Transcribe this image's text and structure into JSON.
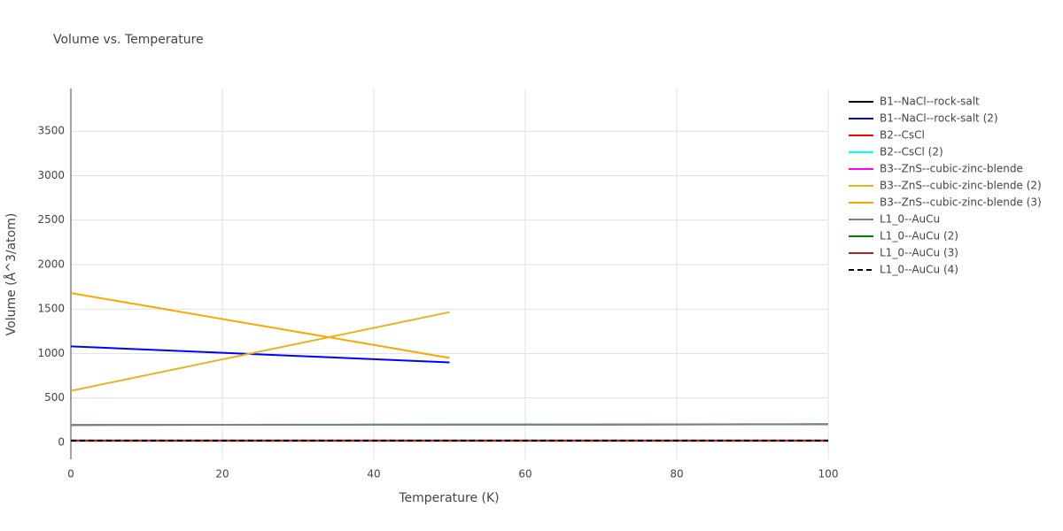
{
  "chart_data": {
    "type": "line",
    "title": "Volume vs. Temperature",
    "x_label": "Temperature (K)",
    "y_label": "Volume (Å^3/atom)",
    "x": [
      0,
      10,
      20,
      30,
      40,
      50,
      60,
      70,
      80,
      90,
      100
    ],
    "xlim": [
      0,
      100
    ],
    "xticks": [
      0,
      20,
      40,
      60,
      80,
      100
    ],
    "ylim": [
      -190,
      3980
    ],
    "yticks": [
      0,
      500,
      1000,
      1500,
      2000,
      2500,
      3000,
      3500
    ],
    "grid": true,
    "legend": "right",
    "series": [
      {
        "name": "B1--NaCl--rock-salt",
        "color": "#000000",
        "values": [
          196,
          197,
          198,
          198,
          199,
          200,
          201,
          201,
          202,
          203,
          204
        ]
      },
      {
        "name": "B1--NaCl--rock-salt (2)",
        "color": "#0000ff",
        "values": [
          1080,
          1044,
          1008,
          972,
          936,
          900,
          null,
          null,
          null,
          null,
          null
        ]
      },
      {
        "name": "B2--CsCl",
        "color": "#ff0000",
        "values": [
          20,
          20,
          20,
          20,
          20,
          20,
          20,
          20,
          20,
          20,
          20
        ]
      },
      {
        "name": "B2--CsCl (2)",
        "color": "#00ffff",
        "values": [
          197,
          198,
          198,
          199,
          200,
          201,
          201,
          202,
          203,
          204,
          205
        ]
      },
      {
        "name": "B3--ZnS--cubic-zinc-blende",
        "color": "#ff00ff",
        "values": [
          20,
          20,
          20,
          20,
          20,
          20,
          20,
          20,
          20,
          20,
          20
        ]
      },
      {
        "name": "B3--ZnS--cubic-zinc-blende (2)",
        "color": "#e6b422",
        "values": [
          580,
          757,
          934,
          1111,
          1288,
          1465,
          null,
          null,
          null,
          null,
          null
        ]
      },
      {
        "name": "B3--ZnS--cubic-zinc-blende (3)",
        "color": "#ffa500",
        "values": [
          1680,
          1534,
          1388,
          1242,
          1096,
          950,
          null,
          null,
          null,
          null,
          null
        ]
      },
      {
        "name": "L1_0--AuCu",
        "color": "#808080",
        "values": [
          197,
          198,
          198,
          199,
          200,
          201,
          201,
          202,
          203,
          204,
          205
        ]
      },
      {
        "name": "L1_0--AuCu (2)",
        "color": "#008000",
        "values": [
          20,
          20,
          20,
          20,
          20,
          20,
          20,
          20,
          20,
          20,
          20
        ]
      },
      {
        "name": "L1_0--AuCu (3)",
        "color": "#b22222",
        "values": [
          20,
          20,
          20,
          20,
          20,
          20,
          20,
          20,
          20,
          20,
          20
        ]
      },
      {
        "name": "L1_0--AuCu (4)",
        "color": "#000000",
        "dash": true,
        "values": [
          20,
          20,
          20,
          20,
          20,
          20,
          20,
          20,
          20,
          20,
          20
        ]
      }
    ]
  }
}
